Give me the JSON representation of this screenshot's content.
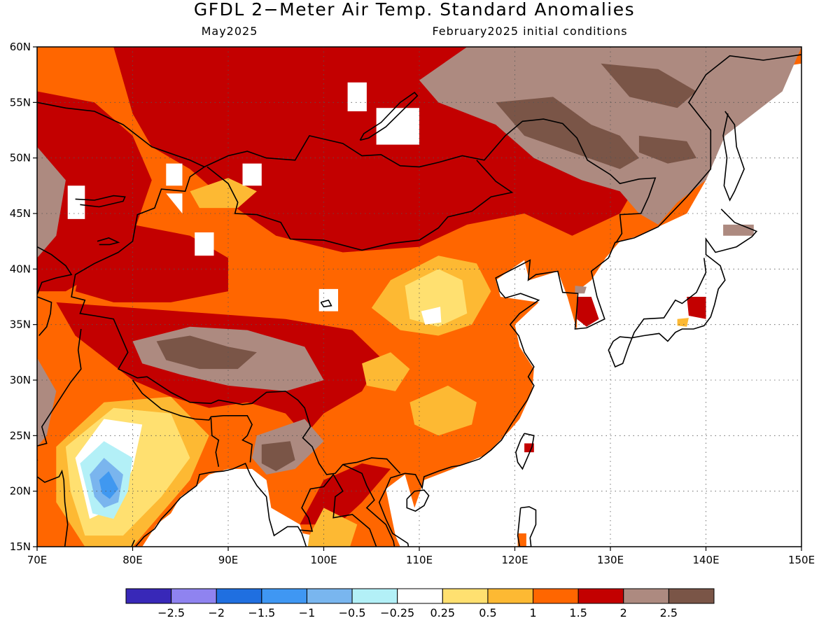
{
  "title": "GFDL 2−Meter Air Temp. Standard Anomalies",
  "subtitle_left": "May2025",
  "subtitle_right": "February2025 initial conditions",
  "map": {
    "lon_range": [
      70,
      150
    ],
    "lat_range": [
      15,
      60
    ],
    "x_ticks": [
      "70E",
      "80E",
      "90E",
      "100E",
      "110E",
      "120E",
      "130E",
      "140E",
      "150E"
    ],
    "y_ticks": [
      "15N",
      "20N",
      "25N",
      "30N",
      "35N",
      "40N",
      "45N",
      "50N",
      "55N",
      "60N"
    ],
    "gridlines": "dotted",
    "projection": "lat-lon",
    "land_anomaly_colors": {
      "very_high": "#7a5547",
      "high": "#ad8a80",
      "strong": "#c30000",
      "moderate": "#ff6600",
      "mild": "#fdb933",
      "slight": "#ffe070",
      "near_zero": "#ffffff",
      "slight_cold": "#b3f0f7",
      "cold": "#7ab5ee",
      "colder": "#4098f0"
    }
  },
  "colorbar": {
    "colors": [
      "#3828b8",
      "#8f83f0",
      "#1f6fe0",
      "#3f97f3",
      "#79b6ef",
      "#b3f0f7",
      "#ffffff",
      "#ffe070",
      "#fdb933",
      "#ff6600",
      "#c30000",
      "#ad8a80",
      "#7a5547"
    ],
    "labels": [
      "−2.5",
      "−2",
      "−1.5",
      "−1",
      "−0.5",
      "−0.25",
      "0.25",
      "0.5",
      "1",
      "1.5",
      "2",
      "2.5"
    ]
  }
}
